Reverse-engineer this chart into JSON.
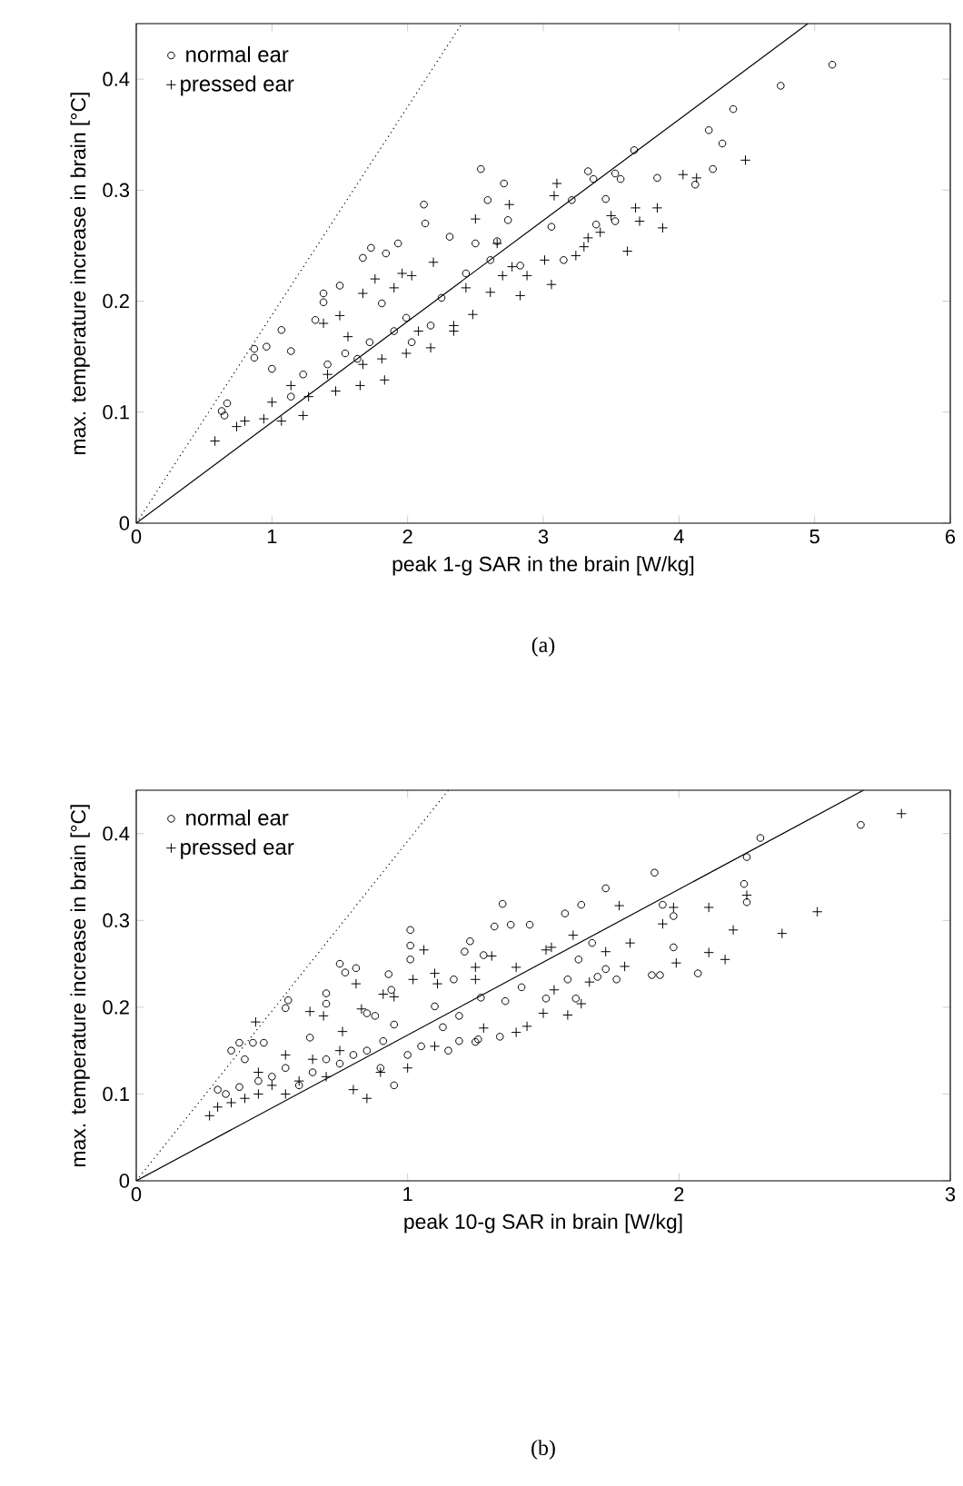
{
  "chart_data": [
    {
      "type": "scatter",
      "xlabel": "peak 1-g SAR in the brain [W/kg]",
      "ylabel": "max. temperature increase in brain [°C]",
      "annotations": [
        "(a)"
      ],
      "xlim": [
        0,
        6
      ],
      "ylim": [
        0,
        0.45
      ],
      "xticks": [
        0,
        1,
        2,
        3,
        4,
        5,
        6
      ],
      "yticks": [
        0,
        0.1,
        0.2,
        0.3,
        0.4
      ],
      "legend": "top left",
      "series": [
        {
          "name": "normal ear",
          "marker": "circle",
          "color": "#000000",
          "x": [
            5.13,
            4.75,
            4.4,
            4.22,
            4.32,
            4.25,
            4.12,
            3.84,
            3.67,
            3.57,
            3.53,
            3.37,
            3.33,
            3.46,
            3.21,
            2.54,
            2.71,
            2.59,
            2.74,
            2.12,
            2.13,
            2.31,
            1.93,
            1.84,
            1.73,
            1.67,
            1.5,
            1.38,
            1.38,
            1.07,
            0.96,
            0.87,
            0.87,
            1.14,
            0.67,
            0.63,
            0.65,
            1.0,
            1.32,
            1.81,
            1.99,
            2.17,
            2.43,
            2.5,
            2.66,
            2.83,
            3.06,
            3.39,
            3.53,
            1.72,
            1.54,
            1.41,
            1.23,
            2.25,
            1.9,
            1.63,
            1.14,
            2.03,
            2.61,
            3.15
          ],
          "values": [
            0.413,
            0.394,
            0.373,
            0.354,
            0.342,
            0.319,
            0.305,
            0.311,
            0.336,
            0.31,
            0.315,
            0.31,
            0.317,
            0.292,
            0.291,
            0.319,
            0.306,
            0.291,
            0.273,
            0.287,
            0.27,
            0.258,
            0.252,
            0.243,
            0.248,
            0.239,
            0.214,
            0.207,
            0.199,
            0.174,
            0.159,
            0.157,
            0.149,
            0.155,
            0.108,
            0.101,
            0.097,
            0.139,
            0.183,
            0.198,
            0.185,
            0.178,
            0.225,
            0.252,
            0.254,
            0.232,
            0.267,
            0.269,
            0.272,
            0.163,
            0.153,
            0.143,
            0.134,
            0.203,
            0.173,
            0.148,
            0.114,
            0.163,
            0.237,
            0.237
          ]
        },
        {
          "name": "pressed ear",
          "marker": "cross",
          "color": "#000000",
          "x": [
            4.49,
            4.03,
            4.13,
            3.88,
            3.84,
            3.71,
            3.62,
            3.68,
            3.5,
            3.1,
            3.08,
            3.3,
            3.24,
            3.01,
            3.06,
            2.83,
            2.77,
            2.66,
            2.5,
            2.75,
            2.43,
            2.48,
            2.34,
            2.19,
            2.03,
            1.96,
            1.9,
            1.76,
            1.67,
            1.5,
            1.38,
            1.56,
            1.81,
            1.99,
            1.83,
            1.65,
            1.47,
            1.27,
            1.23,
            1.07,
            0.94,
            0.8,
            0.74,
            0.58,
            2.17,
            2.34,
            2.61,
            2.88,
            3.33,
            3.42,
            1.41,
            1.14,
            1.0,
            1.67,
            2.08,
            2.7
          ],
          "values": [
            0.327,
            0.314,
            0.311,
            0.266,
            0.284,
            0.272,
            0.245,
            0.284,
            0.277,
            0.306,
            0.295,
            0.249,
            0.241,
            0.237,
            0.215,
            0.205,
            0.231,
            0.252,
            0.274,
            0.287,
            0.212,
            0.188,
            0.178,
            0.235,
            0.223,
            0.225,
            0.212,
            0.22,
            0.207,
            0.187,
            0.18,
            0.168,
            0.148,
            0.153,
            0.129,
            0.124,
            0.119,
            0.114,
            0.097,
            0.092,
            0.094,
            0.092,
            0.087,
            0.074,
            0.158,
            0.173,
            0.208,
            0.223,
            0.257,
            0.262,
            0.134,
            0.124,
            0.109,
            0.143,
            0.173,
            0.223
          ]
        },
        {
          "type": "line",
          "line_style": "solid",
          "color": "#000000",
          "x": [
            0,
            4.95
          ],
          "values": [
            0,
            0.45
          ]
        },
        {
          "type": "line",
          "line_style": "dotted",
          "color": "#000000",
          "x": [
            0,
            2.4
          ],
          "values": [
            0,
            0.45
          ]
        }
      ]
    },
    {
      "type": "scatter",
      "xlabel": "peak 10-g SAR in brain [W/kg]",
      "ylabel": "max. temperature increase in brain [°C]",
      "annotations": [
        "(b)"
      ],
      "xlim": [
        0,
        3
      ],
      "ylim": [
        0,
        0.45
      ],
      "xticks": [
        0,
        1,
        2,
        3
      ],
      "yticks": [
        0,
        0.1,
        0.2,
        0.3,
        0.4
      ],
      "legend": "top left",
      "series": [
        {
          "name": "normal ear",
          "marker": "circle",
          "color": "#000000",
          "x": [
            2.67,
            2.3,
            2.25,
            2.24,
            2.25,
            1.91,
            1.73,
            1.64,
            1.58,
            1.35,
            1.38,
            1.32,
            1.45,
            1.01,
            1.01,
            1.01,
            1.23,
            1.21,
            1.28,
            0.75,
            0.81,
            0.77,
            0.93,
            0.7,
            0.56,
            0.55,
            0.7,
            1.94,
            1.98,
            1.98,
            2.07,
            1.93,
            1.9,
            1.73,
            1.77,
            1.7,
            1.68,
            1.63,
            1.62,
            1.51,
            1.59,
            1.42,
            1.36,
            1.27,
            1.17,
            1.19,
            1.13,
            1.1,
            0.95,
            0.94,
            0.88,
            0.85,
            0.64,
            0.38,
            0.43,
            0.47,
            1.34,
            1.26,
            1.19,
            0.91,
            0.3,
            0.33,
            0.38,
            0.45,
            0.5,
            0.55,
            0.6,
            0.65,
            0.7,
            0.75,
            0.8,
            0.85,
            0.9,
            1.0,
            1.05,
            1.15,
            1.25,
            0.4,
            0.35,
            0.95
          ],
          "values": [
            0.41,
            0.395,
            0.373,
            0.342,
            0.321,
            0.355,
            0.337,
            0.318,
            0.308,
            0.319,
            0.295,
            0.293,
            0.295,
            0.289,
            0.271,
            0.255,
            0.276,
            0.264,
            0.26,
            0.25,
            0.245,
            0.24,
            0.238,
            0.216,
            0.208,
            0.199,
            0.204,
            0.318,
            0.305,
            0.269,
            0.239,
            0.237,
            0.237,
            0.244,
            0.232,
            0.235,
            0.274,
            0.255,
            0.21,
            0.21,
            0.232,
            0.223,
            0.207,
            0.211,
            0.232,
            0.19,
            0.177,
            0.201,
            0.18,
            0.22,
            0.19,
            0.193,
            0.165,
            0.159,
            0.159,
            0.159,
            0.166,
            0.163,
            0.161,
            0.161,
            0.105,
            0.1,
            0.108,
            0.115,
            0.12,
            0.13,
            0.11,
            0.125,
            0.14,
            0.135,
            0.145,
            0.15,
            0.13,
            0.145,
            0.155,
            0.15,
            0.16,
            0.14,
            0.15,
            0.11
          ]
        },
        {
          "name": "pressed ear",
          "marker": "cross",
          "color": "#000000",
          "x": [
            2.82,
            2.51,
            2.38,
            2.2,
            2.11,
            1.98,
            1.94,
            1.78,
            2.25,
            2.11,
            2.17,
            1.99,
            1.82,
            1.8,
            1.73,
            1.67,
            1.64,
            1.59,
            1.5,
            1.54,
            1.61,
            1.53,
            1.51,
            1.4,
            1.31,
            1.25,
            1.25,
            1.06,
            1.1,
            1.11,
            1.02,
            0.95,
            0.91,
            0.81,
            0.83,
            0.64,
            0.69,
            0.44,
            1.44,
            1.4,
            1.28,
            0.76,
            0.27,
            0.3,
            0.35,
            0.4,
            0.45,
            0.5,
            0.55,
            0.6,
            0.7,
            0.8,
            0.9,
            1.0,
            0.65,
            0.45,
            0.55,
            0.75,
            1.1,
            0.85
          ],
          "values": [
            0.423,
            0.31,
            0.285,
            0.289,
            0.315,
            0.315,
            0.296,
            0.317,
            0.329,
            0.263,
            0.255,
            0.251,
            0.274,
            0.247,
            0.264,
            0.229,
            0.204,
            0.191,
            0.193,
            0.22,
            0.283,
            0.269,
            0.266,
            0.246,
            0.259,
            0.246,
            0.232,
            0.266,
            0.239,
            0.227,
            0.232,
            0.212,
            0.215,
            0.227,
            0.198,
            0.195,
            0.19,
            0.183,
            0.178,
            0.171,
            0.176,
            0.172,
            0.075,
            0.085,
            0.09,
            0.095,
            0.1,
            0.11,
            0.1,
            0.115,
            0.12,
            0.105,
            0.125,
            0.13,
            0.14,
            0.125,
            0.145,
            0.15,
            0.155,
            0.095
          ]
        },
        {
          "type": "line",
          "line_style": "solid",
          "color": "#000000",
          "x": [
            0,
            2.68
          ],
          "values": [
            0,
            0.45
          ]
        },
        {
          "type": "line",
          "line_style": "dotted",
          "color": "#000000",
          "x": [
            0,
            1.15
          ],
          "values": [
            0,
            0.45
          ]
        }
      ]
    }
  ]
}
